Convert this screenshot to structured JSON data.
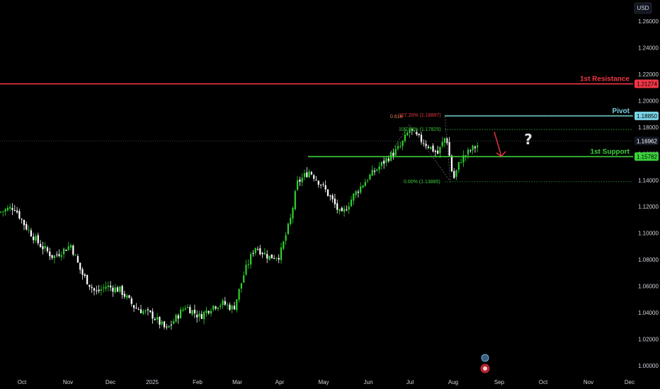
{
  "chart_data": {
    "type": "candlestick",
    "currency": "USD",
    "ylim": [
      0.996,
      1.27
    ],
    "y_ticks": [
      "1.26000",
      "1.24000",
      "1.22000",
      "1.20000",
      "1.18000",
      "1.16000",
      "1.14000",
      "1.12000",
      "1.10000",
      "1.08000",
      "1.06000",
      "1.04000",
      "1.02000",
      "1.00000"
    ],
    "x_ticks": [
      "Oct",
      "Nov",
      "Dec",
      "2025",
      "Feb",
      "Mar",
      "Apr",
      "May",
      "Jun",
      "Jul",
      "Aug",
      "Sep",
      "Oct",
      "Nov",
      "Dec"
    ],
    "current_price": "1.16962",
    "levels": [
      {
        "label": "1st Resistance",
        "value": 1.21274,
        "value_label": "1.21274",
        "color": "#f23645"
      },
      {
        "label": "Pivot",
        "value": 1.1885,
        "value_label": "1.18850",
        "color": "#7ad3e6"
      },
      {
        "label": "1st Support",
        "value": 1.15782,
        "value_label": "1.15782",
        "color": "#3bd13b"
      }
    ],
    "fib_levels": [
      {
        "label": "127.20% (1.18897)",
        "value": 1.18897
      },
      {
        "label": "100.00% (1.17825)",
        "value": 1.17825
      },
      {
        "label": "0.00% (1.13885)",
        "value": 1.13885
      }
    ],
    "fib_extra_label": "0.618",
    "question_mark": "?",
    "colors": {
      "up": "#2ed12e",
      "down": "#ffffff",
      "resistance": "#f23645",
      "pivot": "#7ad3e6",
      "support": "#3bd13b",
      "arrow": "#f23645"
    }
  }
}
